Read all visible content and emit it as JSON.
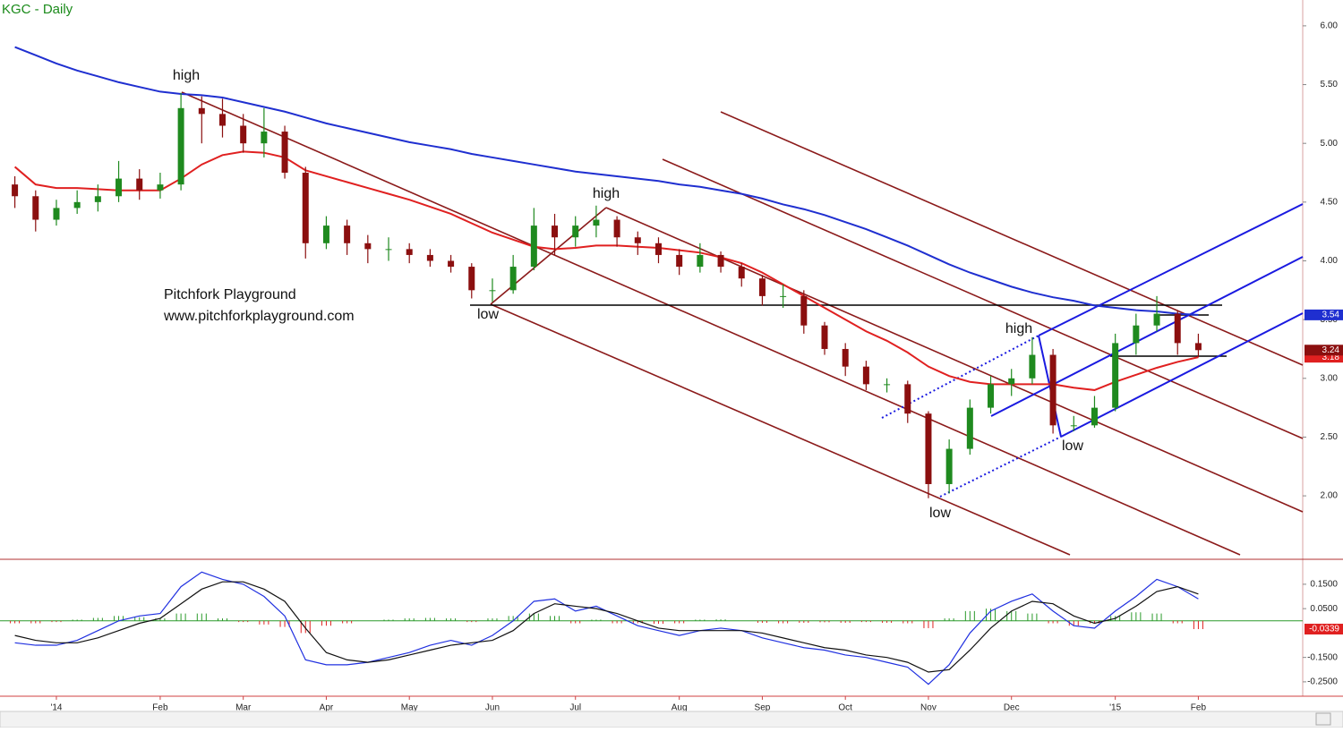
{
  "chart_data": [
    {
      "type": "candlestick",
      "title": "KGC - Daily",
      "categories": [
        null,
        null,
        "'14",
        null,
        null,
        null,
        null,
        "Feb",
        null,
        null,
        null,
        "Mar",
        null,
        null,
        null,
        "Apr",
        null,
        null,
        null,
        "May",
        null,
        null,
        null,
        "Jun",
        null,
        null,
        null,
        "Jul",
        null,
        null,
        null,
        null,
        "Aug",
        null,
        null,
        null,
        "Sep",
        null,
        null,
        null,
        "Oct",
        null,
        null,
        null,
        "Nov",
        null,
        null,
        null,
        "Dec",
        null,
        null,
        null,
        null,
        "'15",
        null,
        null,
        null,
        "Feb"
      ],
      "open": [
        4.65,
        4.55,
        4.35,
        4.45,
        4.5,
        4.55,
        4.7,
        4.6,
        4.65,
        5.3,
        5.25,
        5.15,
        5.0,
        5.1,
        4.75,
        4.15,
        4.3,
        4.15,
        4.1,
        4.1,
        4.05,
        4.0,
        3.95,
        3.75,
        3.75,
        3.95,
        4.3,
        4.2,
        4.3,
        4.35,
        4.2,
        4.15,
        4.05,
        3.95,
        4.05,
        3.95,
        3.85,
        3.7,
        3.7,
        3.45,
        3.25,
        3.1,
        2.95,
        2.95,
        2.7,
        2.1,
        2.4,
        2.75,
        2.95,
        3.0,
        3.2,
        2.6,
        2.6,
        2.75,
        3.3,
        3.45,
        3.55,
        3.3
      ],
      "high": [
        4.72,
        4.6,
        4.52,
        4.6,
        4.65,
        4.85,
        4.78,
        4.75,
        5.43,
        5.4,
        5.38,
        5.25,
        5.3,
        5.15,
        4.8,
        4.38,
        4.35,
        4.22,
        4.2,
        4.15,
        4.1,
        4.05,
        3.98,
        3.85,
        4.05,
        4.45,
        4.4,
        4.38,
        4.47,
        4.38,
        4.25,
        4.2,
        4.1,
        4.15,
        4.08,
        3.98,
        3.88,
        3.8,
        3.75,
        3.48,
        3.3,
        3.15,
        3.0,
        2.98,
        2.72,
        2.48,
        2.82,
        3.02,
        3.08,
        3.35,
        3.25,
        2.68,
        2.85,
        3.38,
        3.55,
        3.7,
        3.58,
        3.38
      ],
      "low": [
        4.45,
        4.25,
        4.3,
        4.4,
        4.42,
        4.5,
        4.52,
        4.53,
        4.6,
        5.0,
        5.05,
        4.92,
        4.88,
        4.7,
        4.02,
        4.1,
        4.05,
        3.98,
        4.0,
        3.98,
        3.95,
        3.9,
        3.68,
        3.65,
        3.72,
        3.92,
        4.05,
        4.12,
        4.2,
        4.12,
        4.05,
        3.98,
        3.88,
        3.9,
        3.9,
        3.78,
        3.62,
        3.6,
        3.38,
        3.2,
        3.02,
        2.9,
        2.88,
        2.62,
        1.98,
        2.02,
        2.35,
        2.7,
        2.85,
        2.95,
        2.53,
        2.55,
        2.58,
        2.72,
        3.2,
        3.4,
        3.2,
        3.18
      ],
      "close": [
        4.55,
        4.35,
        4.45,
        4.5,
        4.55,
        4.7,
        4.6,
        4.65,
        5.3,
        5.25,
        5.15,
        5.0,
        5.1,
        4.75,
        4.15,
        4.3,
        4.15,
        4.1,
        4.1,
        4.05,
        4.0,
        3.95,
        3.75,
        3.75,
        3.95,
        4.3,
        4.2,
        4.3,
        4.35,
        4.2,
        4.15,
        4.05,
        3.95,
        4.05,
        3.95,
        3.85,
        3.7,
        3.7,
        3.45,
        3.25,
        3.1,
        2.95,
        2.95,
        2.7,
        2.1,
        2.4,
        2.75,
        2.95,
        3.0,
        3.2,
        2.6,
        2.6,
        2.75,
        3.3,
        3.45,
        3.55,
        3.3,
        3.24
      ],
      "close_badge": "3.24",
      "up_color": "#1f8a1f",
      "down_color": "#8b0f0f",
      "series": [
        {
          "color": "#1f2fd0",
          "badge": "3.54",
          "values": [
            5.82,
            5.75,
            5.68,
            5.62,
            5.57,
            5.52,
            5.48,
            5.44,
            5.42,
            5.41,
            5.39,
            5.35,
            5.31,
            5.27,
            5.22,
            5.17,
            5.13,
            5.09,
            5.05,
            5.01,
            4.98,
            4.95,
            4.91,
            4.88,
            4.85,
            4.82,
            4.79,
            4.76,
            4.74,
            4.72,
            4.7,
            4.68,
            4.65,
            4.63,
            4.6,
            4.57,
            4.53,
            4.48,
            4.44,
            4.39,
            4.33,
            4.27,
            4.2,
            4.13,
            4.05,
            3.97,
            3.9,
            3.84,
            3.78,
            3.73,
            3.69,
            3.66,
            3.62,
            3.6,
            3.58,
            3.57,
            3.55,
            3.54
          ]
        },
        {
          "color": "#e02020",
          "badge": "3.18",
          "values": [
            4.8,
            4.65,
            4.62,
            4.62,
            4.61,
            4.6,
            4.6,
            4.6,
            4.7,
            4.82,
            4.9,
            4.93,
            4.92,
            4.88,
            4.77,
            4.72,
            4.67,
            4.62,
            4.57,
            4.52,
            4.46,
            4.4,
            4.32,
            4.24,
            4.18,
            4.12,
            4.1,
            4.11,
            4.13,
            4.13,
            4.12,
            4.11,
            4.09,
            4.07,
            4.03,
            3.98,
            3.9,
            3.8,
            3.7,
            3.6,
            3.5,
            3.4,
            3.32,
            3.22,
            3.1,
            3.02,
            2.97,
            2.95,
            2.95,
            2.95,
            2.95,
            2.92,
            2.9,
            2.97,
            3.03,
            3.09,
            3.14,
            3.18
          ]
        }
      ],
      "ylim": [
        1.46,
        6.22
      ],
      "yticks": [
        {
          "value": 6,
          "label": "6.00"
        },
        {
          "value": 5.5,
          "label": "5.50"
        },
        {
          "value": 5,
          "label": "5.00"
        },
        {
          "value": 4.5,
          "label": "4.50"
        },
        {
          "value": 4,
          "label": "4.00"
        },
        {
          "value": 3.5,
          "label": "3.50"
        },
        {
          "value": 3,
          "label": "3.00"
        },
        {
          "value": 2.5,
          "label": "2.50"
        },
        {
          "value": 2,
          "label": "2.00"
        }
      ],
      "annotations": [
        "high",
        "high",
        "low",
        "high",
        "low",
        "low",
        "Pitchfork Playground",
        "www.pitchforkplayground.com"
      ]
    },
    {
      "type": "macd",
      "series": [
        {
          "color": "#2030e0",
          "values": [
            -0.09,
            -0.1,
            -0.1,
            -0.08,
            -0.04,
            0.0,
            0.02,
            0.03,
            0.14,
            0.2,
            0.17,
            0.15,
            0.1,
            0.02,
            -0.16,
            -0.18,
            -0.18,
            -0.17,
            -0.15,
            -0.13,
            -0.1,
            -0.08,
            -0.1,
            -0.06,
            0.0,
            0.08,
            0.09,
            0.04,
            0.06,
            0.02,
            -0.02,
            -0.04,
            -0.06,
            -0.04,
            -0.03,
            -0.04,
            -0.07,
            -0.09,
            -0.11,
            -0.12,
            -0.14,
            -0.15,
            -0.17,
            -0.19,
            -0.26,
            -0.18,
            -0.05,
            0.04,
            0.08,
            0.11,
            0.04,
            -0.02,
            -0.03,
            0.04,
            0.1,
            0.17,
            0.14,
            0.09
          ]
        },
        {
          "color": "#111111",
          "values": [
            -0.06,
            -0.08,
            -0.09,
            -0.09,
            -0.07,
            -0.04,
            -0.01,
            0.01,
            0.07,
            0.13,
            0.16,
            0.16,
            0.13,
            0.08,
            -0.03,
            -0.13,
            -0.16,
            -0.17,
            -0.16,
            -0.14,
            -0.12,
            -0.1,
            -0.09,
            -0.08,
            -0.04,
            0.03,
            0.07,
            0.06,
            0.05,
            0.03,
            0.0,
            -0.03,
            -0.04,
            -0.04,
            -0.04,
            -0.04,
            -0.05,
            -0.07,
            -0.09,
            -0.11,
            -0.12,
            -0.14,
            -0.15,
            -0.17,
            -0.21,
            -0.2,
            -0.12,
            -0.03,
            0.04,
            0.08,
            0.07,
            0.02,
            -0.01,
            0.01,
            0.06,
            0.12,
            0.14,
            0.11
          ]
        }
      ],
      "histogram": {
        "up_color": "#2a9a2a",
        "down_color": "#e02020",
        "badge": "-0.0339",
        "values": [
          -0.01,
          -0.01,
          -0.005,
          0.005,
          0.012,
          0.02,
          0.015,
          0.01,
          0.03,
          0.03,
          0.01,
          -0.005,
          -0.015,
          -0.025,
          -0.05,
          -0.02,
          -0.01,
          0.0,
          0.005,
          0.01,
          0.012,
          0.01,
          -0.005,
          0.01,
          0.02,
          0.03,
          0.02,
          -0.01,
          0.005,
          -0.01,
          -0.01,
          -0.012,
          -0.01,
          0.005,
          0.006,
          0.0,
          -0.008,
          -0.01,
          -0.008,
          -0.006,
          -0.008,
          -0.005,
          -0.008,
          -0.01,
          -0.03,
          0.01,
          0.04,
          0.05,
          0.04,
          0.03,
          -0.01,
          -0.02,
          -0.01,
          0.02,
          0.035,
          0.03,
          -0.01,
          -0.0339
        ]
      },
      "ylim": [
        -0.298,
        0.234
      ],
      "yticks": [
        {
          "value": 0.15,
          "label": "0.1500"
        },
        {
          "value": 0.05,
          "label": "0.0500"
        },
        {
          "value": -0.15,
          "label": "-0.1500"
        },
        {
          "value": -0.25,
          "label": "-0.2500"
        }
      ]
    }
  ]
}
